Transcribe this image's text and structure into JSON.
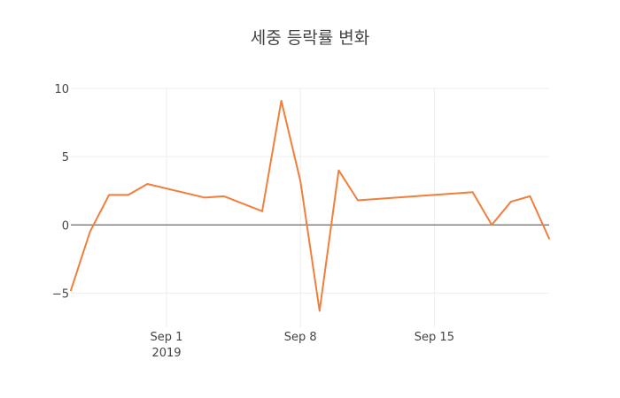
{
  "chart_data": {
    "type": "line",
    "title": "세중 등락률 변화",
    "xlabel": "",
    "ylabel": "",
    "x_tick_labels": [
      {
        "date": "2019-09-01",
        "label": "Sep 1",
        "sublabel": "2019"
      },
      {
        "date": "2019-09-08",
        "label": "Sep 8",
        "sublabel": ""
      },
      {
        "date": "2019-09-15",
        "label": "Sep 15",
        "sublabel": ""
      }
    ],
    "y_ticks": [
      -5,
      0,
      5,
      10
    ],
    "y_tick_labels": [
      "−5",
      "0",
      "5",
      "10"
    ],
    "xlim": [
      "2019-08-27",
      "2019-09-21"
    ],
    "ylim": [
      -7.5,
      10
    ],
    "grid": true,
    "zero_line": true,
    "legend": "none",
    "series": [
      {
        "color": "#f07f3c",
        "x": [
          "2019-08-27",
          "2019-08-28",
          "2019-08-29",
          "2019-08-30",
          "2019-08-31",
          "2019-09-03",
          "2019-09-04",
          "2019-09-06",
          "2019-09-07",
          "2019-09-08",
          "2019-09-09",
          "2019-09-10",
          "2019-09-11",
          "2019-09-17",
          "2019-09-18",
          "2019-09-19",
          "2019-09-20",
          "2019-09-21"
        ],
        "y": [
          -4.8,
          -0.5,
          2.2,
          2.2,
          3.0,
          2.0,
          2.1,
          1.0,
          9.1,
          3.2,
          -6.3,
          4.0,
          1.8,
          2.4,
          0.0,
          1.7,
          2.1,
          -1.0
        ]
      }
    ]
  }
}
